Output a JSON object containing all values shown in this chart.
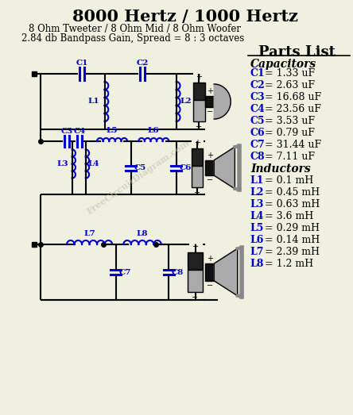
{
  "title": "8000 Hertz / 1000 Hertz",
  "subtitle1": "8 Ohm Tweeter / 8 Ohm Mid / 8 Ohm Woofer",
  "subtitle2": "2.84 db Bandpass Gain, Spread = 8 : 3 octaves",
  "bg_color": "#f0f0e0",
  "blue": "#0000cc",
  "black": "#000000",
  "parts_list_title": "Parts List",
  "capacitors_header": "Capacitors",
  "inductors_header": "Inductors",
  "capacitors": [
    [
      "C1",
      " = 1.33 uF"
    ],
    [
      "C2",
      " = 2.63 uF"
    ],
    [
      "C3",
      " = 16.68 uF"
    ],
    [
      "C4",
      " = 23.56 uF"
    ],
    [
      "C5",
      " = 3.53 uF"
    ],
    [
      "C6",
      " = 0.79 uF"
    ],
    [
      "C7",
      " = 31.44 uF"
    ],
    [
      "C8",
      " = 7.11 uF"
    ]
  ],
  "inductors": [
    [
      "L1",
      " = 0.1 mH"
    ],
    [
      "L2",
      " = 0.45 mH"
    ],
    [
      "L3",
      " = 0.63 mH"
    ],
    [
      "L4",
      " = 3.6 mH"
    ],
    [
      "L5",
      " = 0.29 mH"
    ],
    [
      "L6",
      " = 0.14 mH"
    ],
    [
      "L7",
      " = 2.39 mH"
    ],
    [
      "L8",
      " = 1.2 mH"
    ]
  ],
  "watermark": "FreeCircuitDiagram.com"
}
